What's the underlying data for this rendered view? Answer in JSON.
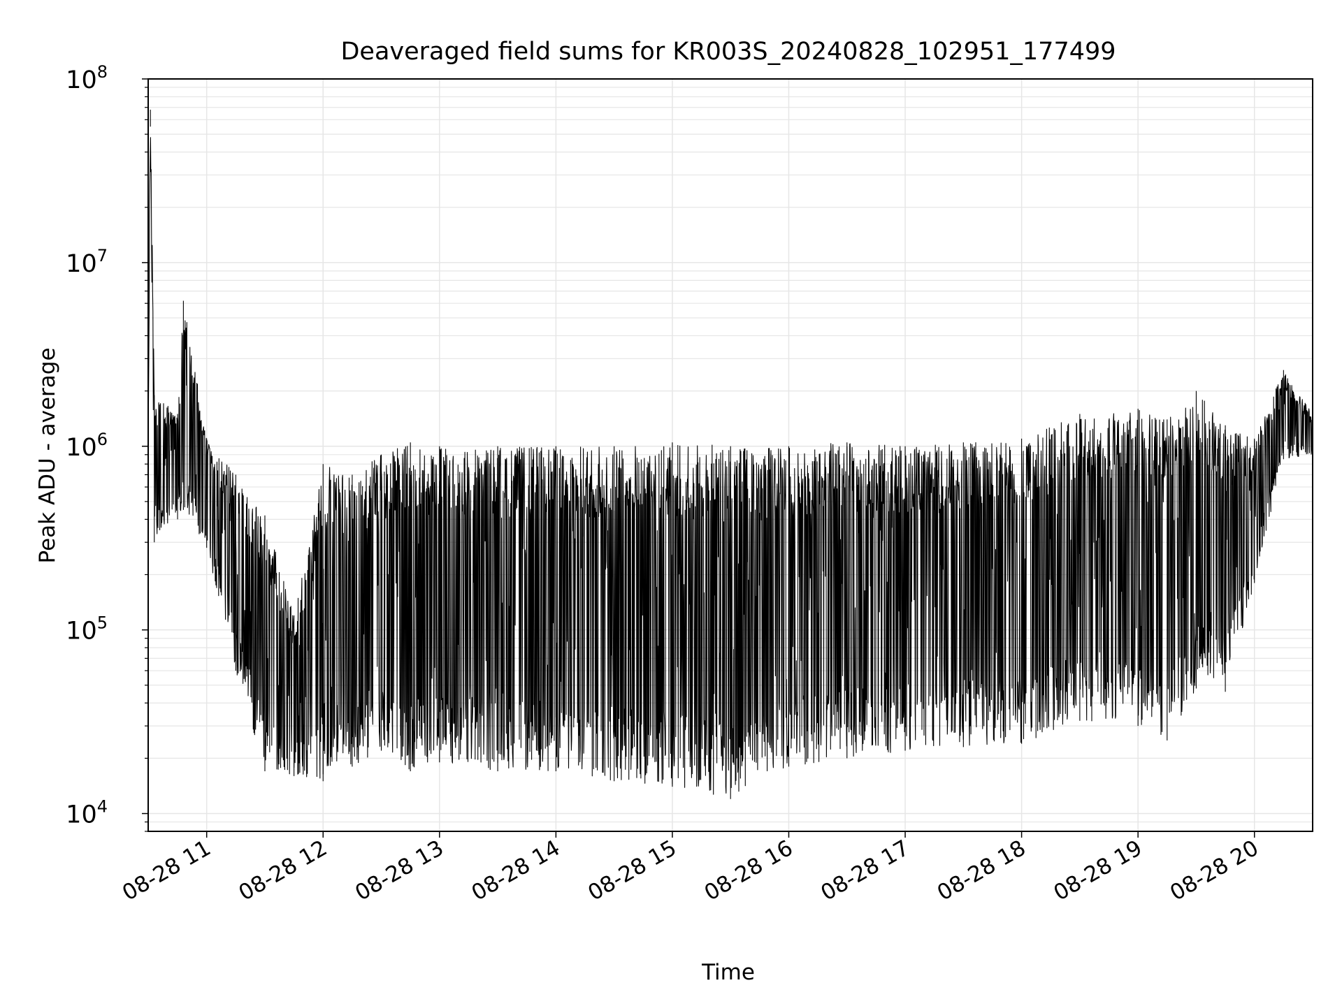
{
  "chart_data": {
    "type": "line",
    "title": "Deaveraged field sums for KR003S_20240828_102951_177499",
    "xlabel": "Time",
    "ylabel": "Peak ADU - average",
    "yscale": "log",
    "ylim": [
      8000,
      100000000
    ],
    "xlim": [
      "2024-08-28 10:29:51",
      "2024-08-28 20:30:00"
    ],
    "x_tick_labels": [
      "08-28 11",
      "08-28 12",
      "08-28 13",
      "08-28 14",
      "08-28 15",
      "08-28 16",
      "08-28 17",
      "08-28 18",
      "08-28 19",
      "08-28 20"
    ],
    "y_ticks": [
      {
        "exp": 4,
        "value": 10000
      },
      {
        "exp": 5,
        "value": 100000
      },
      {
        "exp": 6,
        "value": 1000000
      },
      {
        "exp": 7,
        "value": 10000000
      },
      {
        "exp": 8,
        "value": 100000000
      }
    ],
    "grid": true,
    "line_color": "#000000",
    "grid_color": "#e6e6e6",
    "envelope": [
      {
        "t": "2024-08-28 10:30",
        "low": 1500000,
        "high": 3900000
      },
      {
        "t": "2024-08-28 10:31",
        "low": 55000000,
        "high": 68000000
      },
      {
        "t": "2024-08-28 10:33",
        "low": 300000,
        "high": 1900000
      },
      {
        "t": "2024-08-28 10:45",
        "low": 400000,
        "high": 1500000
      },
      {
        "t": "2024-08-28 10:48",
        "low": 450000,
        "high": 6200000
      },
      {
        "t": "2024-08-28 11:00",
        "low": 280000,
        "high": 1100000
      },
      {
        "t": "2024-08-28 11:15",
        "low": 60000,
        "high": 700000
      },
      {
        "t": "2024-08-28 11:30",
        "low": 17000,
        "high": 420000
      },
      {
        "t": "2024-08-28 11:45",
        "low": 16000,
        "high": 120000
      },
      {
        "t": "2024-08-28 12:00",
        "low": 15000,
        "high": 800000
      },
      {
        "t": "2024-08-28 12:15",
        "low": 18000,
        "high": 700000
      },
      {
        "t": "2024-08-28 12:30",
        "low": 22000,
        "high": 900000
      },
      {
        "t": "2024-08-28 12:45",
        "low": 17000,
        "high": 1050000
      },
      {
        "t": "2024-08-28 13:00",
        "low": 19000,
        "high": 1000000
      },
      {
        "t": "2024-08-28 13:30",
        "low": 17000,
        "high": 1000000
      },
      {
        "t": "2024-08-28 14:00",
        "low": 17000,
        "high": 1000000
      },
      {
        "t": "2024-08-28 14:30",
        "low": 15000,
        "high": 1000000
      },
      {
        "t": "2024-08-28 15:00",
        "low": 14000,
        "high": 1050000
      },
      {
        "t": "2024-08-28 15:30",
        "low": 12000,
        "high": 1000000
      },
      {
        "t": "2024-08-28 16:00",
        "low": 18000,
        "high": 1000000
      },
      {
        "t": "2024-08-28 16:30",
        "low": 20000,
        "high": 1050000
      },
      {
        "t": "2024-08-28 17:00",
        "low": 22000,
        "high": 1000000
      },
      {
        "t": "2024-08-28 17:30",
        "low": 23000,
        "high": 1050000
      },
      {
        "t": "2024-08-28 18:00",
        "low": 24000,
        "high": 1100000
      },
      {
        "t": "2024-08-28 18:30",
        "low": 32000,
        "high": 1500000
      },
      {
        "t": "2024-08-28 19:00",
        "low": 30000,
        "high": 1600000
      },
      {
        "t": "2024-08-28 19:15",
        "low": 25000,
        "high": 1400000
      },
      {
        "t": "2024-08-28 19:30",
        "low": 48000,
        "high": 2000000
      },
      {
        "t": "2024-08-28 19:45",
        "low": 46000,
        "high": 1300000
      },
      {
        "t": "2024-08-28 20:00",
        "low": 180000,
        "high": 1100000
      },
      {
        "t": "2024-08-28 20:15",
        "low": 850000,
        "high": 2600000
      },
      {
        "t": "2024-08-28 20:30",
        "low": 900000,
        "high": 1500000
      }
    ]
  }
}
